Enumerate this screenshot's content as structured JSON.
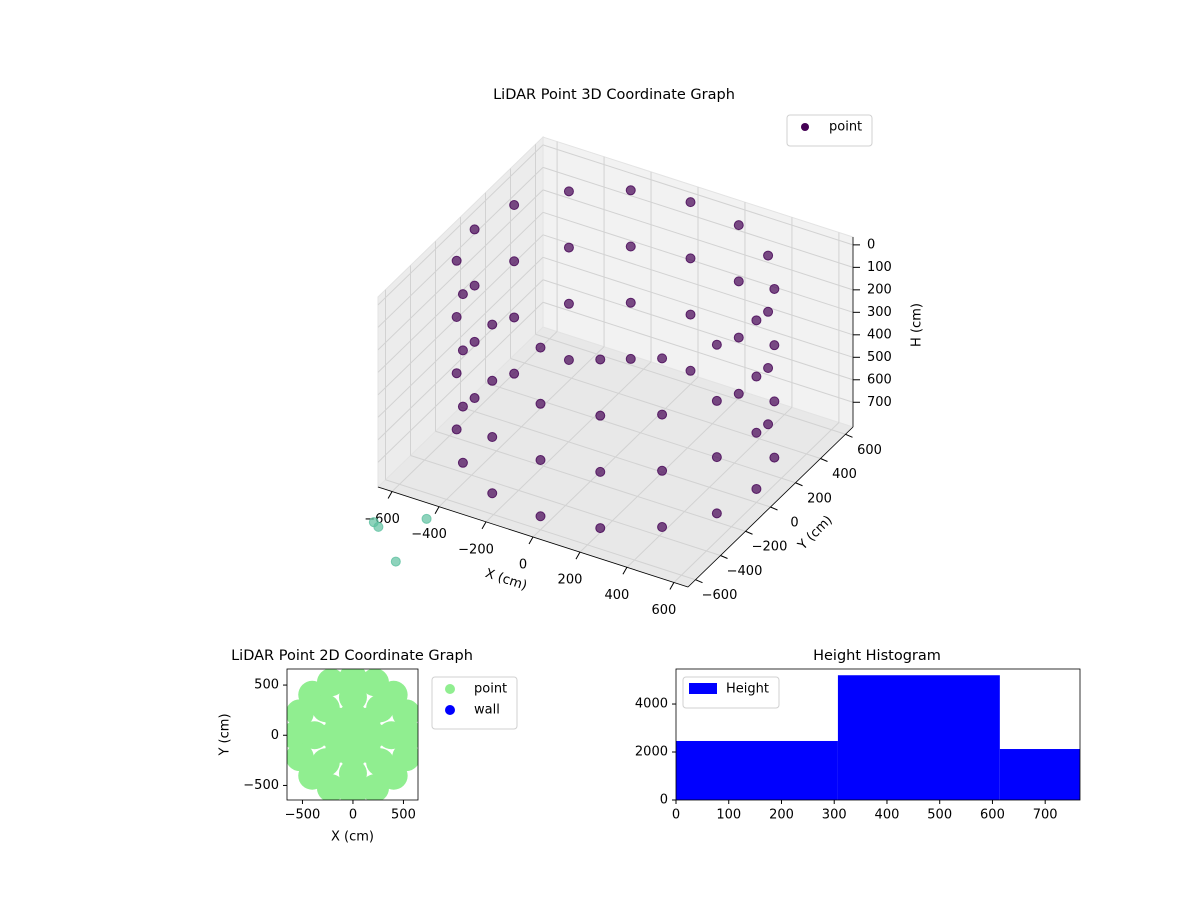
{
  "chart_data": [
    {
      "type": "scatter3d",
      "title": "LiDAR Point 3D Coordinate Graph",
      "xlabel": "X (cm)",
      "ylabel": "Y (cm)",
      "zlabel": "H (cm)",
      "xlim": [
        -660,
        660
      ],
      "ylim": [
        -660,
        660
      ],
      "zlim": [
        810,
        -35
      ],
      "xticks": [
        {
          "value": -600,
          "label": "−600"
        },
        {
          "value": -400,
          "label": "−400"
        },
        {
          "value": -200,
          "label": "−200"
        },
        0,
        200,
        400,
        600
      ],
      "yticks": [
        {
          "value": -600,
          "label": "−600"
        },
        {
          "value": -400,
          "label": "−400"
        },
        {
          "value": -200,
          "label": "−200"
        },
        0,
        200,
        400,
        600
      ],
      "zticks": [
        0,
        100,
        200,
        300,
        400,
        500,
        600,
        700
      ],
      "grid": true,
      "legend": "upper right",
      "series": [
        {
          "name": "point",
          "color": "#440154",
          "x": [
            600,
            554,
            424,
            230,
            0,
            -230,
            -424,
            -554,
            -600,
            -554,
            -424,
            -230,
            0,
            230,
            424,
            554,
            600,
            554,
            424,
            230,
            0,
            -230,
            -424,
            -554,
            -600,
            -554,
            -424,
            -230,
            0,
            230,
            424,
            554,
            600,
            554,
            424,
            230,
            0,
            -230,
            -424,
            -554,
            -600,
            -554,
            -424,
            -230,
            0,
            230,
            424,
            554,
            600,
            554,
            424,
            230,
            0,
            -230,
            -424,
            -554,
            -600,
            -554,
            -424,
            -230,
            0,
            230,
            424,
            554
          ],
          "y": [
            0,
            230,
            424,
            554,
            600,
            554,
            424,
            230,
            0,
            -230,
            -424,
            -554,
            -600,
            -554,
            -424,
            -230,
            0,
            230,
            424,
            554,
            600,
            554,
            424,
            230,
            0,
            -230,
            -424,
            -554,
            -600,
            -554,
            -424,
            -230,
            0,
            230,
            424,
            554,
            600,
            554,
            424,
            230,
            0,
            -230,
            -424,
            -554,
            -600,
            -554,
            -424,
            -230,
            0,
            230,
            424,
            554,
            600,
            554,
            424,
            230,
            0,
            -230,
            -424,
            -554,
            -600,
            -554,
            -424,
            -230
          ],
          "h": [
            0,
            0,
            0,
            0,
            0,
            0,
            0,
            0,
            0,
            0,
            0,
            0,
            0,
            0,
            0,
            0,
            250,
            250,
            250,
            250,
            250,
            250,
            250,
            250,
            250,
            250,
            250,
            250,
            250,
            250,
            250,
            250,
            500,
            500,
            500,
            500,
            500,
            500,
            500,
            500,
            500,
            500,
            500,
            500,
            500,
            500,
            500,
            500,
            750,
            750,
            750,
            750,
            750,
            750,
            750,
            750,
            750,
            750,
            750,
            750,
            750,
            750,
            750,
            750
          ]
        },
        {
          "color": "#5ec1a0",
          "x": [
            -550,
            -520,
            -400,
            -350
          ],
          "y": [
            -900,
            -920,
            -760,
            -1100
          ],
          "h": [
            800,
            800,
            810,
            800
          ]
        }
      ]
    },
    {
      "type": "scatter",
      "title": "LiDAR Point 2D Coordinate Graph",
      "xlabel": "X (cm)",
      "ylabel": "Y (cm)",
      "xlim": [
        -653,
        644
      ],
      "ylim": [
        -645,
        660
      ],
      "xticks": [
        {
          "value": -500,
          "label": "−500"
        },
        0,
        500
      ],
      "yticks": [
        {
          "value": -500,
          "label": "−500"
        },
        0,
        500
      ],
      "legend": "outside upper left",
      "series": [
        {
          "name": "point",
          "color": "lightgreen",
          "x": [
            570,
            527,
            403,
            218,
            0,
            -218,
            -403,
            -527,
            -570,
            -527,
            -403,
            -218,
            0,
            218,
            403,
            527,
            380,
            269,
            0,
            -269,
            -380,
            -269,
            0,
            269,
            190,
            134,
            0,
            -134,
            -190,
            -134,
            0,
            134,
            0
          ],
          "y": [
            0,
            218,
            403,
            527,
            570,
            527,
            403,
            218,
            0,
            -218,
            -403,
            -527,
            -570,
            -527,
            -403,
            -218,
            0,
            269,
            380,
            269,
            0,
            -269,
            -380,
            -269,
            0,
            134,
            190,
            134,
            0,
            -134,
            -190,
            -134,
            0
          ]
        },
        {
          "name": "wall",
          "color": "blue",
          "x": [],
          "y": []
        }
      ]
    },
    {
      "type": "histogram",
      "title": "Height Histogram",
      "bins": [
        0,
        307,
        614,
        766
      ],
      "counts": [
        2460,
        5200,
        2125
      ],
      "name": "Height",
      "color": "blue",
      "xlim": [
        0,
        766
      ],
      "ylim": [
        0,
        5460
      ],
      "xticks": [
        0,
        100,
        200,
        300,
        400,
        500,
        600,
        700
      ],
      "yticks": [
        0,
        2000,
        4000
      ],
      "legend": "upper left"
    }
  ]
}
